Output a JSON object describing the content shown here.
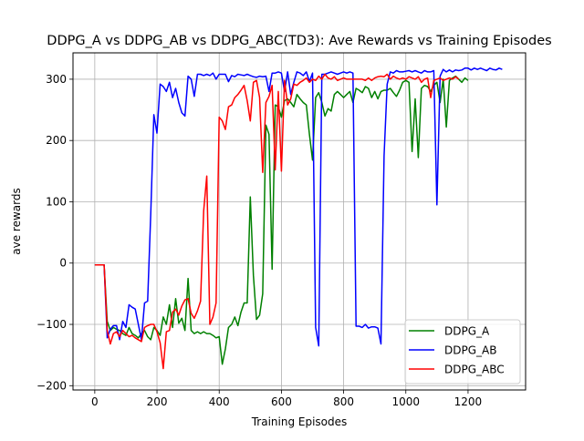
{
  "chart_data": {
    "type": "line",
    "title": "DDPG_A vs DDPG_AB vs DDPG_ABC(TD3): Ave Rewards vs Training Episodes",
    "xlabel": "Training Episodes",
    "ylabel": "ave rewards",
    "xlim": [
      -70,
      1385
    ],
    "ylim": [
      -207,
      343
    ],
    "xticks": [
      0,
      200,
      400,
      600,
      800,
      1000,
      1200
    ],
    "yticks": [
      -200,
      -100,
      0,
      100,
      200,
      300
    ],
    "grid": true,
    "legend_position": "lower-right",
    "series": [
      {
        "name": "DDPG_A",
        "color": "#008000",
        "x": [
          0,
          30,
          40,
          50,
          60,
          70,
          80,
          90,
          100,
          110,
          120,
          130,
          140,
          150,
          160,
          170,
          180,
          190,
          200,
          210,
          220,
          230,
          240,
          250,
          260,
          270,
          280,
          290,
          300,
          310,
          320,
          330,
          340,
          350,
          360,
          370,
          380,
          390,
          400,
          410,
          420,
          430,
          440,
          450,
          460,
          470,
          480,
          490,
          500,
          510,
          520,
          530,
          540,
          550,
          560,
          570,
          580,
          590,
          600,
          610,
          620,
          630,
          640,
          650,
          660,
          670,
          680,
          690,
          700,
          710,
          720,
          730,
          740,
          750,
          760,
          770,
          780,
          790,
          800,
          810,
          820,
          830,
          840,
          850,
          860,
          870,
          880,
          890,
          900,
          910,
          920,
          930,
          940,
          950,
          960,
          970,
          980,
          990,
          1000,
          1010,
          1020,
          1030,
          1040,
          1050,
          1060,
          1070,
          1080,
          1090,
          1100,
          1110,
          1120,
          1130,
          1140,
          1150,
          1160,
          1170,
          1180,
          1190,
          1200
        ],
        "y": [
          -3,
          -3,
          -95,
          -110,
          -105,
          -108,
          -110,
          -115,
          -118,
          -105,
          -115,
          -118,
          -122,
          -115,
          -110,
          -120,
          -125,
          -105,
          -110,
          -118,
          -88,
          -100,
          -68,
          -105,
          -58,
          -98,
          -90,
          -110,
          -25,
          -110,
          -115,
          -112,
          -115,
          -112,
          -115,
          -115,
          -118,
          -122,
          -120,
          -165,
          -140,
          -105,
          -100,
          -88,
          -102,
          -80,
          -65,
          -65,
          108,
          -20,
          -92,
          -85,
          -50,
          225,
          210,
          -10,
          258,
          255,
          238,
          265,
          268,
          262,
          255,
          275,
          268,
          262,
          258,
          210,
          168,
          270,
          278,
          262,
          240,
          252,
          248,
          275,
          280,
          275,
          270,
          275,
          280,
          262,
          285,
          282,
          278,
          288,
          285,
          270,
          280,
          268,
          280,
          282,
          282,
          285,
          278,
          272,
          282,
          295,
          298,
          295,
          182,
          268,
          172,
          285,
          290,
          288,
          280,
          290,
          295,
          262,
          300,
          222,
          298,
          302,
          305,
          300,
          295,
          302,
          298
        ]
      },
      {
        "name": "DDPG_AB",
        "color": "#0000ff",
        "x": [
          0,
          30,
          40,
          50,
          60,
          70,
          80,
          90,
          100,
          110,
          120,
          130,
          140,
          150,
          160,
          170,
          180,
          190,
          200,
          210,
          220,
          230,
          240,
          250,
          260,
          270,
          280,
          290,
          300,
          310,
          320,
          330,
          340,
          350,
          360,
          370,
          380,
          390,
          400,
          410,
          420,
          430,
          440,
          450,
          460,
          470,
          480,
          490,
          500,
          510,
          520,
          530,
          540,
          550,
          560,
          570,
          580,
          590,
          600,
          610,
          620,
          630,
          640,
          650,
          660,
          670,
          680,
          690,
          700,
          710,
          720,
          730,
          740,
          750,
          760,
          770,
          780,
          790,
          800,
          810,
          820,
          830,
          840,
          850,
          860,
          870,
          880,
          890,
          900,
          910,
          920,
          930,
          940,
          950,
          960,
          970,
          980,
          990,
          1000,
          1010,
          1020,
          1030,
          1040,
          1050,
          1060,
          1070,
          1080,
          1090,
          1100,
          1110,
          1120,
          1130,
          1140,
          1150,
          1160,
          1170,
          1180,
          1190,
          1200,
          1210,
          1220,
          1230,
          1240,
          1250,
          1260,
          1270,
          1280,
          1290,
          1300,
          1310
        ],
        "y": [
          -3,
          -3,
          -122,
          -108,
          -102,
          -102,
          -125,
          -95,
          -105,
          -68,
          -72,
          -75,
          -100,
          -125,
          -65,
          -62,
          80,
          242,
          212,
          292,
          288,
          280,
          295,
          270,
          285,
          262,
          245,
          240,
          305,
          300,
          272,
          308,
          308,
          306,
          308,
          306,
          310,
          300,
          308,
          308,
          308,
          296,
          306,
          304,
          308,
          307,
          306,
          308,
          306,
          304,
          303,
          305,
          304,
          305,
          280,
          310,
          310,
          312,
          310,
          280,
          312,
          275,
          295,
          312,
          310,
          306,
          312,
          296,
          310,
          -105,
          -135,
          308,
          308,
          310,
          312,
          310,
          308,
          310,
          312,
          310,
          312,
          310,
          -103,
          -103,
          -105,
          -100,
          -106,
          -104,
          -104,
          -106,
          -132,
          175,
          292,
          312,
          310,
          314,
          312,
          312,
          313,
          314,
          312,
          314,
          312,
          310,
          314,
          312,
          312,
          314,
          95,
          305,
          316,
          312,
          315,
          312,
          315,
          314,
          315,
          318,
          318,
          315,
          318,
          316,
          318,
          316,
          314,
          318,
          316,
          315,
          318,
          316
        ]
      },
      {
        "name": "DDPG_ABC",
        "color": "#ff0000",
        "x": [
          0,
          30,
          40,
          50,
          60,
          70,
          80,
          90,
          100,
          110,
          120,
          130,
          140,
          150,
          160,
          170,
          180,
          190,
          200,
          210,
          220,
          230,
          240,
          250,
          260,
          270,
          280,
          290,
          300,
          310,
          320,
          330,
          340,
          350,
          360,
          370,
          380,
          390,
          400,
          410,
          420,
          430,
          440,
          450,
          460,
          470,
          480,
          490,
          500,
          510,
          520,
          530,
          540,
          550,
          560,
          570,
          580,
          590,
          600,
          610,
          620,
          630,
          640,
          650,
          660,
          670,
          680,
          690,
          700,
          710,
          720,
          730,
          740,
          750,
          760,
          770,
          780,
          790,
          800,
          810,
          820,
          830,
          840,
          850,
          860,
          870,
          880,
          890,
          900,
          910,
          920,
          930,
          940,
          950,
          960,
          970,
          980,
          990,
          1000,
          1010,
          1020,
          1030,
          1040,
          1050,
          1060,
          1070,
          1080,
          1090,
          1100,
          1110,
          1120,
          1130,
          1140,
          1150,
          1160,
          1170
        ],
        "y": [
          -3,
          -3,
          -110,
          -132,
          -115,
          -112,
          -120,
          -110,
          -115,
          -120,
          -118,
          -122,
          -125,
          -128,
          -105,
          -102,
          -100,
          -100,
          -112,
          -130,
          -172,
          -112,
          -110,
          -80,
          -75,
          -85,
          -70,
          -60,
          -58,
          -82,
          -90,
          -78,
          -62,
          85,
          142,
          -100,
          -88,
          -65,
          238,
          232,
          218,
          255,
          258,
          270,
          275,
          282,
          290,
          265,
          232,
          295,
          298,
          270,
          148,
          262,
          272,
          290,
          152,
          280,
          150,
          298,
          258,
          268,
          292,
          290,
          295,
          298,
          302,
          295,
          300,
          298,
          305,
          300,
          308,
          302,
          300,
          304,
          298,
          300,
          302,
          300,
          300,
          300,
          300,
          300,
          300,
          298,
          302,
          298,
          302,
          304,
          305,
          304,
          308,
          300,
          305,
          302,
          300,
          302,
          300,
          304,
          302,
          300,
          304,
          295,
          300,
          302,
          270,
          298,
          300,
          302,
          298,
          300,
          302,
          300,
          304,
          300
        ]
      }
    ]
  }
}
